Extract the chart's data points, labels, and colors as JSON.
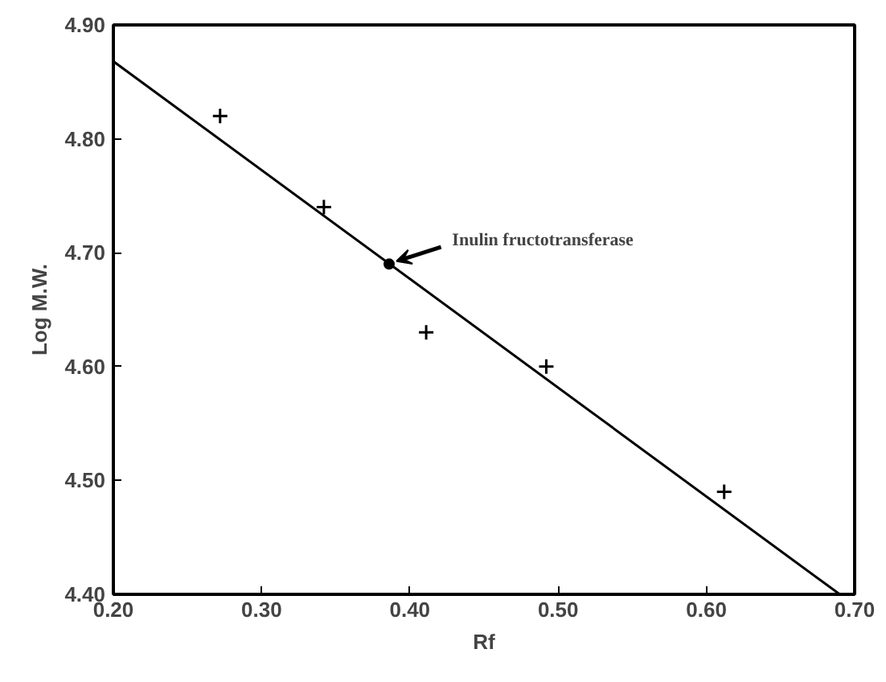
{
  "chart_data": {
    "type": "scatter",
    "xlabel": "Rf",
    "ylabel": "Log M.W.",
    "xlim": [
      0.2,
      0.7
    ],
    "ylim": [
      4.4,
      4.9
    ],
    "xticks": [
      {
        "value": 0.2,
        "label": "0.20"
      },
      {
        "value": 0.3,
        "label": "0.30"
      },
      {
        "value": 0.4,
        "label": "0.40"
      },
      {
        "value": 0.5,
        "label": "0.50"
      },
      {
        "value": 0.6,
        "label": "0.60"
      },
      {
        "value": 0.7,
        "label": "0.70"
      }
    ],
    "yticks": [
      {
        "value": 4.4,
        "label": "4.40"
      },
      {
        "value": 4.5,
        "label": "4.50"
      },
      {
        "value": 4.6,
        "label": "4.60"
      },
      {
        "value": 4.7,
        "label": "4.70"
      },
      {
        "value": 4.8,
        "label": "4.80"
      },
      {
        "value": 4.9,
        "label": "4.90"
      }
    ],
    "series": [
      {
        "marker": "cross",
        "color": "#000000",
        "x": [
          0.272,
          0.342,
          0.411,
          0.492,
          0.612
        ],
        "values": [
          4.82,
          4.74,
          4.63,
          4.6,
          4.49
        ]
      },
      {
        "marker": "circle",
        "color": "#000000",
        "x": [
          0.386
        ],
        "values": [
          4.69
        ]
      },
      {
        "type": "line",
        "marker": "none",
        "line_style": "solid",
        "color": "#000000",
        "x": [
          0.2,
          0.69
        ],
        "values": [
          4.868,
          4.4
        ]
      }
    ],
    "annotations": [
      {
        "text": "Inulin fructotransferase",
        "x": 0.386,
        "y": 4.69
      }
    ]
  }
}
